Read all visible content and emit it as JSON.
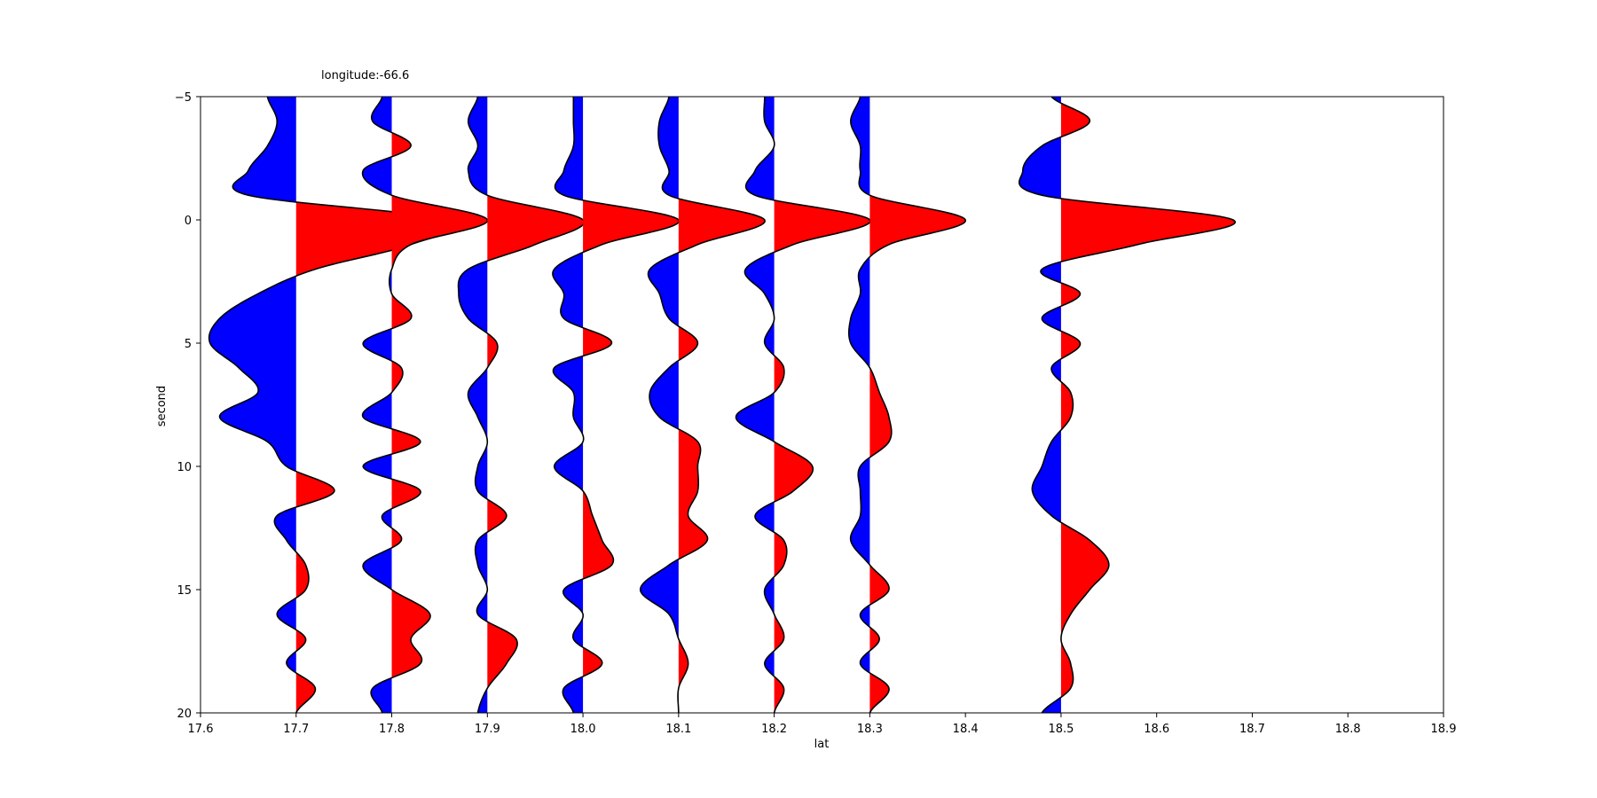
{
  "chart_data": {
    "type": "seismic-wiggle",
    "title": "longitude:-66.6",
    "xlabel": "lat",
    "ylabel": "second",
    "xlim": [
      17.6,
      18.9
    ],
    "ylim": [
      -5,
      20
    ],
    "y_inverted": true,
    "xticks": [
      "17.6",
      "17.7",
      "17.8",
      "17.9",
      "18.0",
      "18.1",
      "18.2",
      "18.3",
      "18.4",
      "18.5",
      "18.6",
      "18.7",
      "18.8",
      "18.9"
    ],
    "yticks": [
      "−5",
      "0",
      "5",
      "10",
      "15",
      "20"
    ],
    "fill_positive": "#ff0000",
    "fill_negative": "#0000ff",
    "line_color": "#000000",
    "time": [
      -5,
      -4,
      -3,
      -2,
      -1,
      0,
      1,
      2,
      3,
      4,
      5,
      6,
      7,
      8,
      9,
      10,
      11,
      12,
      13,
      14,
      15,
      16,
      17,
      18,
      19,
      20
    ],
    "traces": [
      {
        "lat": 17.7,
        "amp": [
          -0.03,
          -0.02,
          -0.03,
          -0.05,
          -0.05,
          0.16,
          0.12,
          0.02,
          -0.04,
          -0.08,
          -0.09,
          -0.06,
          -0.04,
          -0.08,
          -0.03,
          -0.01,
          0.04,
          -0.02,
          -0.01,
          0.01,
          0.01,
          -0.02,
          0.01,
          -0.01,
          0.02,
          0.0
        ]
      },
      {
        "lat": 17.8,
        "amp": [
          -0.01,
          -0.02,
          0.02,
          -0.03,
          0.0,
          0.1,
          0.02,
          0.0,
          0.0,
          0.02,
          -0.03,
          0.01,
          0.0,
          -0.03,
          0.03,
          -0.03,
          0.03,
          -0.01,
          0.01,
          -0.03,
          0.0,
          0.04,
          0.02,
          0.03,
          -0.02,
          -0.01
        ]
      },
      {
        "lat": 17.9,
        "amp": [
          -0.01,
          -0.02,
          -0.01,
          -0.02,
          0.0,
          0.1,
          0.05,
          -0.02,
          -0.03,
          -0.02,
          0.01,
          0.0,
          -0.02,
          -0.01,
          0.0,
          -0.01,
          -0.01,
          0.02,
          -0.01,
          -0.01,
          0.0,
          -0.01,
          0.03,
          0.02,
          0.0,
          -0.01
        ]
      },
      {
        "lat": 18.0,
        "amp": [
          -0.01,
          -0.01,
          -0.01,
          -0.02,
          -0.02,
          0.1,
          0.02,
          -0.03,
          -0.02,
          -0.02,
          0.03,
          -0.03,
          -0.01,
          -0.01,
          0.0,
          -0.03,
          0.0,
          0.01,
          0.02,
          0.03,
          -0.02,
          0.0,
          -0.01,
          0.02,
          -0.02,
          -0.01
        ]
      },
      {
        "lat": 18.1,
        "amp": [
          -0.01,
          -0.02,
          -0.02,
          -0.01,
          -0.01,
          0.09,
          0.02,
          -0.03,
          -0.02,
          -0.01,
          0.02,
          -0.01,
          -0.03,
          -0.02,
          0.02,
          0.02,
          0.02,
          0.01,
          0.03,
          -0.01,
          -0.04,
          -0.01,
          0.0,
          0.01,
          0.0,
          0.0
        ]
      },
      {
        "lat": 18.2,
        "amp": [
          -0.01,
          -0.01,
          0.0,
          -0.02,
          -0.02,
          0.1,
          0.02,
          -0.03,
          -0.01,
          0.0,
          -0.01,
          0.01,
          0.0,
          -0.04,
          0.0,
          0.04,
          0.02,
          -0.02,
          0.01,
          0.01,
          -0.01,
          0.0,
          0.01,
          -0.01,
          0.01,
          0.0
        ]
      },
      {
        "lat": 18.3,
        "amp": [
          -0.01,
          -0.02,
          -0.01,
          -0.01,
          0.0,
          0.1,
          0.02,
          -0.01,
          -0.01,
          -0.02,
          -0.02,
          0.0,
          0.01,
          0.02,
          0.02,
          -0.01,
          -0.01,
          -0.01,
          -0.02,
          0.0,
          0.02,
          -0.01,
          0.01,
          -0.01,
          0.02,
          0.0
        ]
      },
      {
        "lat": 18.5,
        "amp": [
          -0.01,
          0.03,
          -0.02,
          -0.04,
          -0.02,
          0.18,
          0.08,
          -0.02,
          0.02,
          -0.02,
          0.02,
          -0.01,
          0.01,
          0.01,
          -0.01,
          -0.02,
          -0.03,
          -0.01,
          0.03,
          0.05,
          0.03,
          0.01,
          0.0,
          0.01,
          0.01,
          -0.02
        ]
      }
    ]
  }
}
